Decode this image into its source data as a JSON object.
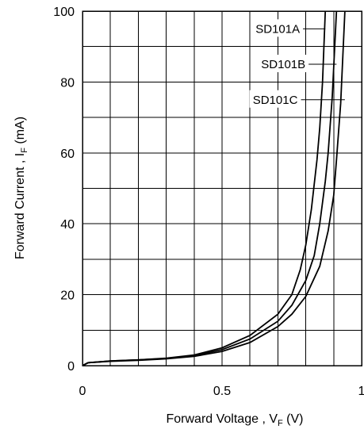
{
  "chart_data": {
    "type": "line",
    "xlabel_main": "Forward Voltage , V",
    "xlabel_sub": "F",
    "xlabel_unit": " (V)",
    "ylabel_main": "Forward Current , I",
    "ylabel_sub": "F",
    "ylabel_unit": " (mA)",
    "xlim": [
      0,
      1
    ],
    "ylim": [
      0,
      100
    ],
    "x_grid_step": 0.1,
    "y_grid_step": 10,
    "x_ticks": [
      {
        "value": 0,
        "label": "0"
      },
      {
        "value": 0.5,
        "label": "0.5"
      },
      {
        "value": 1,
        "label": "1"
      }
    ],
    "y_ticks": [
      {
        "value": 0,
        "label": "0"
      },
      {
        "value": 20,
        "label": "20"
      },
      {
        "value": 40,
        "label": "40"
      },
      {
        "value": 60,
        "label": "60"
      },
      {
        "value": 80,
        "label": "80"
      },
      {
        "value": 100,
        "label": "100"
      }
    ],
    "series": [
      {
        "name": "SD101A",
        "x": [
          0,
          0.02,
          0.1,
          0.2,
          0.3,
          0.4,
          0.5,
          0.6,
          0.7,
          0.75,
          0.78,
          0.8,
          0.82,
          0.84,
          0.85,
          0.86,
          0.87
        ],
        "y": [
          0,
          0.8,
          1.3,
          1.6,
          2.1,
          3.0,
          5.0,
          8.5,
          14.5,
          20,
          27,
          34,
          44,
          58,
          67,
          80,
          100
        ]
      },
      {
        "name": "SD101B",
        "x": [
          0,
          0.02,
          0.1,
          0.2,
          0.3,
          0.4,
          0.5,
          0.6,
          0.7,
          0.75,
          0.8,
          0.83,
          0.85,
          0.87,
          0.88,
          0.895,
          0.91
        ],
        "y": [
          0,
          0.8,
          1.3,
          1.6,
          2.0,
          2.8,
          4.5,
          7.5,
          12.5,
          17,
          24,
          31,
          40,
          52,
          60,
          76,
          100
        ]
      },
      {
        "name": "SD101C",
        "x": [
          0,
          0.02,
          0.1,
          0.2,
          0.3,
          0.4,
          0.5,
          0.6,
          0.7,
          0.75,
          0.8,
          0.85,
          0.88,
          0.9,
          0.91,
          0.925,
          0.94
        ],
        "y": [
          0,
          0.8,
          1.2,
          1.5,
          1.9,
          2.6,
          4.0,
          6.5,
          11,
          14.5,
          19.5,
          28,
          38,
          48,
          58,
          74,
          100
        ]
      }
    ],
    "series_labels": [
      {
        "series": "SD101A",
        "label_x": 0.62,
        "label_y": 95,
        "anchor_x": 0.87,
        "anchor_y": 95
      },
      {
        "series": "SD101B",
        "label_x": 0.64,
        "label_y": 85,
        "anchor_x": 0.91,
        "anchor_y": 85
      },
      {
        "series": "SD101C",
        "label_x": 0.61,
        "label_y": 75,
        "anchor_x": 0.94,
        "anchor_y": 75
      }
    ],
    "grid": true,
    "legend": "inline labels"
  }
}
